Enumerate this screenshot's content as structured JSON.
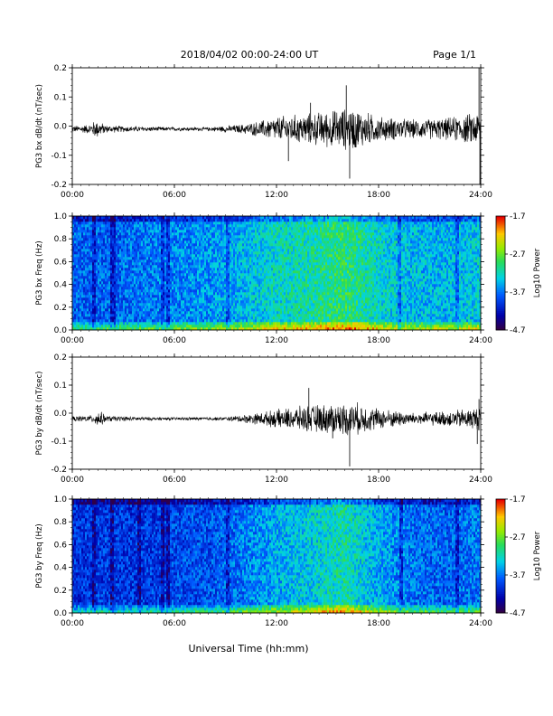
{
  "header": {
    "title": "2018/04/02  00:00-24:00 UT",
    "page": "Page 1/1"
  },
  "xaxis": {
    "label": "Universal Time (hh:mm)",
    "ticks": [
      "00:00",
      "06:00",
      "12:00",
      "18:00",
      "24:00"
    ]
  },
  "chart_data": [
    {
      "type": "line",
      "ylabel": "PG3 bx dB/dt (nT/sec)",
      "xlim_hours": [
        0,
        24
      ],
      "ylim": [
        -0.2,
        0.2
      ],
      "yticks": [
        "0.2",
        "0.1",
        "0.0",
        "-0.1",
        "-0.2"
      ],
      "baseline": -0.01,
      "amplitude_envelope": [
        {
          "x": 0,
          "y": 0.01
        },
        {
          "x": 1.0,
          "y": 0.015
        },
        {
          "x": 1.4,
          "y": 0.03
        },
        {
          "x": 2.0,
          "y": 0.012
        },
        {
          "x": 4.0,
          "y": 0.008
        },
        {
          "x": 6.0,
          "y": 0.006
        },
        {
          "x": 8.0,
          "y": 0.006
        },
        {
          "x": 10.0,
          "y": 0.015
        },
        {
          "x": 11.0,
          "y": 0.025
        },
        {
          "x": 12.0,
          "y": 0.04
        },
        {
          "x": 14.0,
          "y": 0.05
        },
        {
          "x": 16.5,
          "y": 0.07
        },
        {
          "x": 18.0,
          "y": 0.04
        },
        {
          "x": 20.0,
          "y": 0.03
        },
        {
          "x": 22.0,
          "y": 0.035
        },
        {
          "x": 23.5,
          "y": 0.05
        },
        {
          "x": 24.0,
          "y": 0.06
        }
      ],
      "spikes": [
        {
          "x": 16.1,
          "y": 0.14
        },
        {
          "x": 16.3,
          "y": -0.18
        },
        {
          "x": 12.7,
          "y": -0.12
        },
        {
          "x": 23.9,
          "y": 0.2
        },
        {
          "x": 23.95,
          "y": -0.2
        },
        {
          "x": 14.0,
          "y": 0.08
        }
      ]
    },
    {
      "type": "heatmap",
      "ylabel": "PG3 bx Freq (Hz)",
      "xlim_hours": [
        0,
        24
      ],
      "ylim": [
        0.0,
        1.0
      ],
      "yticks": [
        "1.0",
        "0.8",
        "0.6",
        "0.4",
        "0.2",
        "0.0"
      ],
      "colorbar": {
        "label": "Log10 Power",
        "ticks": [
          "-1.7",
          "-2.7",
          "-3.7",
          "-4.7"
        ],
        "range": [
          -4.7,
          -1.7
        ]
      },
      "activity_profile": [
        {
          "x": 0,
          "v": 0.3
        },
        {
          "x": 2,
          "v": 0.3
        },
        {
          "x": 4,
          "v": 0.33
        },
        {
          "x": 6,
          "v": 0.35
        },
        {
          "x": 8,
          "v": 0.37
        },
        {
          "x": 10,
          "v": 0.42
        },
        {
          "x": 12,
          "v": 0.48
        },
        {
          "x": 14,
          "v": 0.52
        },
        {
          "x": 16,
          "v": 0.58
        },
        {
          "x": 18,
          "v": 0.48
        },
        {
          "x": 20,
          "v": 0.42
        },
        {
          "x": 22,
          "v": 0.42
        },
        {
          "x": 24,
          "v": 0.45
        }
      ],
      "dark_bands_hours": [
        1.3,
        2.4,
        5.3,
        5.6,
        9.1,
        19.2,
        22.6
      ]
    },
    {
      "type": "line",
      "ylabel": "PG3 by dB/dt (nT/sec)",
      "xlim_hours": [
        0,
        24
      ],
      "ylim": [
        -0.2,
        0.2
      ],
      "yticks": [
        "0.2",
        "0.1",
        "0.0",
        "-0.1",
        "-0.2"
      ],
      "baseline": -0.02,
      "amplitude_envelope": [
        {
          "x": 0,
          "y": 0.008
        },
        {
          "x": 1.2,
          "y": 0.012
        },
        {
          "x": 1.5,
          "y": 0.03
        },
        {
          "x": 2.0,
          "y": 0.01
        },
        {
          "x": 4.0,
          "y": 0.006
        },
        {
          "x": 6.0,
          "y": 0.005
        },
        {
          "x": 9.0,
          "y": 0.006
        },
        {
          "x": 11.0,
          "y": 0.02
        },
        {
          "x": 12.0,
          "y": 0.03
        },
        {
          "x": 14.0,
          "y": 0.045
        },
        {
          "x": 16.5,
          "y": 0.055
        },
        {
          "x": 18.0,
          "y": 0.035
        },
        {
          "x": 20.0,
          "y": 0.02
        },
        {
          "x": 22.0,
          "y": 0.025
        },
        {
          "x": 24.0,
          "y": 0.04
        }
      ],
      "spikes": [
        {
          "x": 13.9,
          "y": 0.09
        },
        {
          "x": 16.3,
          "y": -0.19
        },
        {
          "x": 15.3,
          "y": -0.09
        },
        {
          "x": 23.8,
          "y": -0.11
        },
        {
          "x": 23.9,
          "y": 0.05
        }
      ]
    },
    {
      "type": "heatmap",
      "ylabel": "PG3 by Freq (Hz)",
      "xlim_hours": [
        0,
        24
      ],
      "ylim": [
        0.0,
        1.0
      ],
      "yticks": [
        "1.0",
        "0.8",
        "0.6",
        "0.4",
        "0.2",
        "0.0"
      ],
      "colorbar": {
        "label": "Log10 Power",
        "ticks": [
          "-1.7",
          "-2.7",
          "-3.7",
          "-4.7"
        ],
        "range": [
          -4.7,
          -1.7
        ]
      },
      "activity_profile": [
        {
          "x": 0,
          "v": 0.22
        },
        {
          "x": 2,
          "v": 0.24
        },
        {
          "x": 4,
          "v": 0.23
        },
        {
          "x": 6,
          "v": 0.26
        },
        {
          "x": 8,
          "v": 0.27
        },
        {
          "x": 10,
          "v": 0.33
        },
        {
          "x": 12,
          "v": 0.4
        },
        {
          "x": 14,
          "v": 0.45
        },
        {
          "x": 16,
          "v": 0.52
        },
        {
          "x": 18,
          "v": 0.4
        },
        {
          "x": 20,
          "v": 0.32
        },
        {
          "x": 22,
          "v": 0.3
        },
        {
          "x": 24,
          "v": 0.33
        }
      ],
      "dark_bands_hours": [
        1.3,
        2.3,
        3.9,
        5.3,
        5.6,
        9.1,
        19.3,
        22.6
      ]
    }
  ]
}
